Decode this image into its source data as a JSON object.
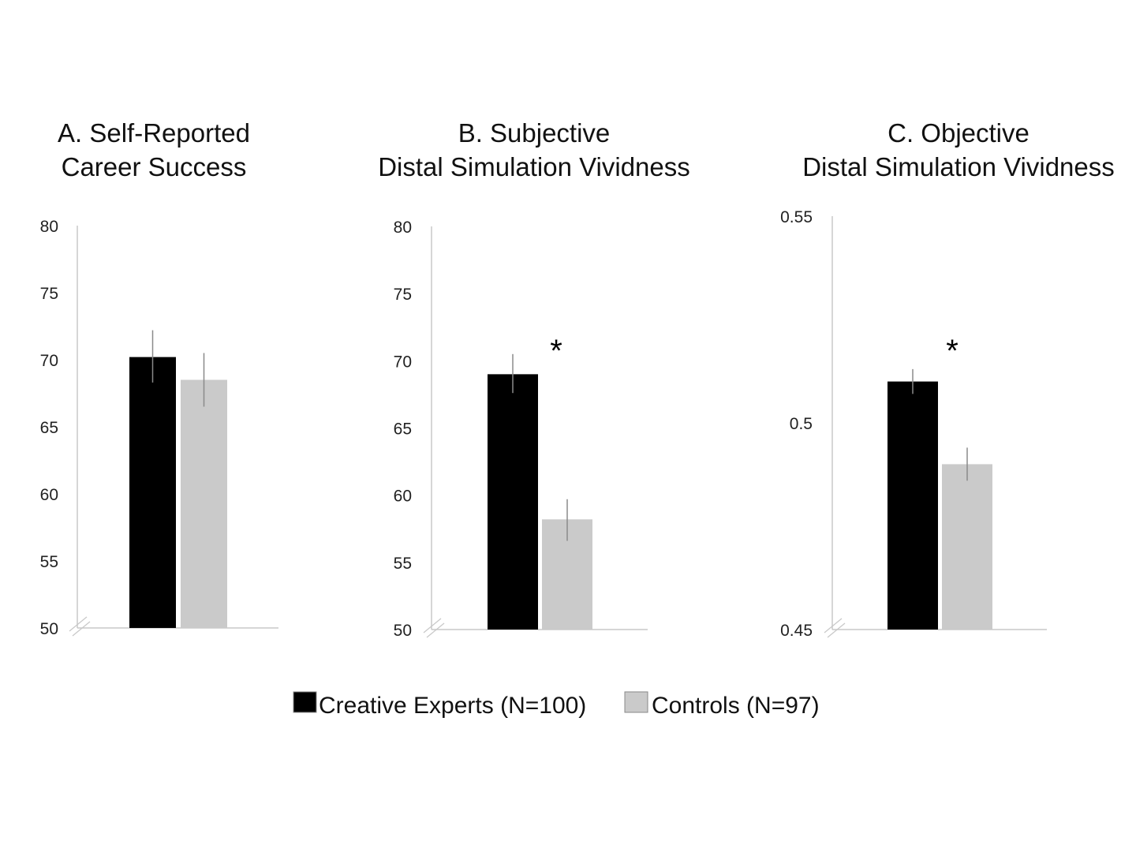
{
  "chart_data": [
    {
      "type": "bar",
      "title": [
        "A. Self-Reported",
        "Career Success"
      ],
      "ylim": [
        50,
        80
      ],
      "yticks": [
        "50",
        "55",
        "60",
        "65",
        "70",
        "75",
        "80"
      ],
      "axis_break": true,
      "series": [
        {
          "name": "Creative Experts (N=100)",
          "value": 70.2,
          "error": [
            68.3,
            72.2
          ],
          "color": "#000000"
        },
        {
          "name": "Controls (N=97)",
          "value": 68.5,
          "error": [
            66.5,
            70.5
          ],
          "color": "#cacaca"
        }
      ],
      "significance": ""
    },
    {
      "type": "bar",
      "title": [
        "B. Subjective",
        "Distal Simulation Vividness"
      ],
      "ylim": [
        50,
        80
      ],
      "yticks": [
        "50",
        "55",
        "60",
        "65",
        "70",
        "75",
        "80"
      ],
      "axis_break": true,
      "series": [
        {
          "name": "Creative Experts (N=100)",
          "value": 69.0,
          "error": [
            67.6,
            70.5
          ],
          "color": "#000000"
        },
        {
          "name": "Controls (N=97)",
          "value": 58.2,
          "error": [
            56.6,
            59.7
          ],
          "color": "#cacaca"
        }
      ],
      "significance": "*"
    },
    {
      "type": "bar",
      "title": [
        "C. Objective",
        "Distal Simulation Vividness"
      ],
      "ylim": [
        0.45,
        0.55
      ],
      "yticks": [
        "0.45",
        "0.5",
        "0.55"
      ],
      "axis_break": true,
      "series": [
        {
          "name": "Creative Experts (N=100)",
          "value": 0.51,
          "error": [
            0.507,
            0.513
          ],
          "color": "#000000"
        },
        {
          "name": "Controls (N=97)",
          "value": 0.49,
          "error": [
            0.486,
            0.494
          ],
          "color": "#cacaca"
        }
      ],
      "significance": "*"
    }
  ],
  "legend": {
    "placement": "bottom",
    "items": [
      {
        "label": "Creative Experts (N=100)",
        "color": "#000000"
      },
      {
        "label": "Controls (N=97)",
        "color": "#cacaca"
      }
    ]
  }
}
